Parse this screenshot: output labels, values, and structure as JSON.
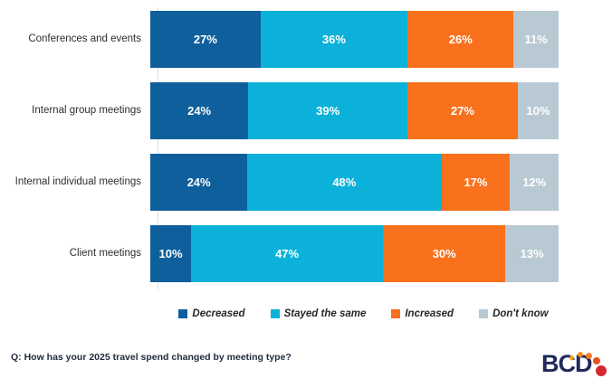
{
  "chart_data": {
    "type": "bar",
    "variant": "horizontal-stacked",
    "title": "",
    "xlabel": "",
    "ylabel": "",
    "xlim": [
      0,
      100
    ],
    "value_suffix": "%",
    "grid": false,
    "legend_position": "bottom",
    "categories": [
      "Conferences and events",
      "Internal group meetings",
      "Internal individual meetings",
      "Client meetings"
    ],
    "series": [
      {
        "name": "Decreased",
        "color": "#0f5f9c",
        "values": [
          27,
          24,
          24,
          10
        ]
      },
      {
        "name": "Stayed the same",
        "color": "#0bb1d8",
        "values": [
          36,
          39,
          48,
          47
        ]
      },
      {
        "name": "Increased",
        "color": "#f9711c",
        "values": [
          26,
          27,
          17,
          30
        ]
      },
      {
        "name": "Don't know",
        "color": "#b9c9d3",
        "values": [
          11,
          10,
          12,
          13
        ]
      }
    ]
  },
  "footer": {
    "question": "Q: How has your 2025 travel spend changed by meeting type?"
  },
  "logo": {
    "text": "BCD",
    "text_color": "#1f2a5b",
    "dot_colors": [
      "#f59c1c",
      "#f68c1e",
      "#f57e20",
      "#ea501e",
      "#d7282f"
    ]
  }
}
